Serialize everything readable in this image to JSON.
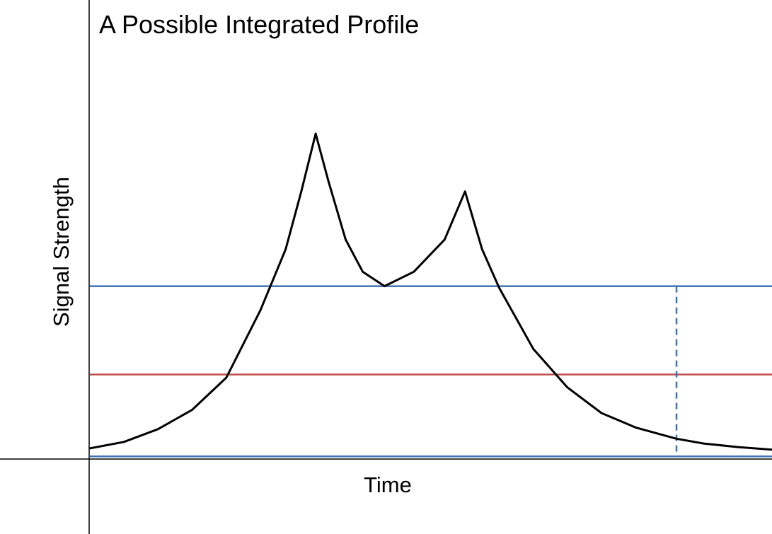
{
  "chart_data": {
    "type": "line",
    "title": "A Possible Integrated Profile",
    "xlabel": "Time",
    "ylabel": "Signal Strength",
    "xlim": [
      0,
      100
    ],
    "ylim": [
      0,
      100
    ],
    "grid": false,
    "series": [
      {
        "color": "#000000",
        "x": [
          0,
          5,
          10,
          15,
          20,
          25,
          28.7,
          31,
          33.1,
          35,
          37.5,
          40,
          43.2,
          47.5,
          52,
          55,
          57.5,
          60,
          65,
          70,
          75,
          80,
          86,
          90,
          95,
          100
        ],
        "y": [
          2,
          4,
          8,
          14,
          24,
          45,
          64,
          82,
          100,
          85,
          67,
          57,
          52.5,
          57,
          67,
          82,
          64,
          52,
          33,
          21,
          13,
          8.5,
          5,
          3.5,
          2.4,
          1.6
        ]
      }
    ],
    "reference_lines": [
      {
        "orientation": "horizontal",
        "y": 52.5,
        "color": "#3c74b4",
        "style": "solid"
      },
      {
        "orientation": "horizontal",
        "y": 25,
        "color": "#c0504d",
        "style": "solid"
      },
      {
        "orientation": "horizontal",
        "y": -0.5,
        "color": "#3c74b4",
        "style": "solid"
      },
      {
        "orientation": "vertical",
        "x": 86,
        "y_range": [
          -0.5,
          52.5
        ],
        "color": "#3c74b4",
        "style": "dashed"
      }
    ]
  }
}
